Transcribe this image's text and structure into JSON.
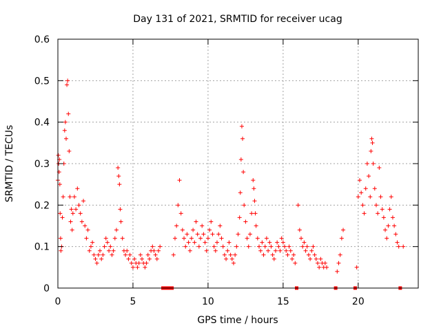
{
  "chart_data": {
    "type": "scatter",
    "title": "Day 131 of 2021, SRMTID for receiver ucag",
    "xlabel": "GPS time / hours",
    "ylabel": "SRMTID / TECUs",
    "xlim": [
      0,
      24
    ],
    "ylim": [
      0,
      0.6
    ],
    "x_ticks": [
      0,
      5,
      10,
      15,
      20
    ],
    "x_tick_labels": [
      "0",
      "5",
      "10",
      "15",
      "20"
    ],
    "y_ticks": [
      0,
      0.1,
      0.2,
      0.3,
      0.4,
      0.5,
      0.6
    ],
    "y_tick_labels": [
      "0",
      "0.1",
      "0.2",
      "0.3",
      "0.4",
      "0.5",
      "0.6"
    ],
    "grid": true,
    "marker": "plus",
    "marker_color": "#ff0000",
    "series": [
      {
        "name": "SRMTID",
        "x": [
          0.0,
          0.03,
          0.05,
          0.08,
          0.1,
          0.13,
          0.15,
          0.18,
          0.2,
          0.25,
          0.3,
          0.35,
          0.4,
          0.45,
          0.5,
          0.55,
          0.6,
          0.65,
          0.7,
          0.75,
          0.8,
          0.85,
          0.9,
          0.95,
          1.0,
          1.1,
          1.2,
          1.3,
          1.4,
          1.5,
          1.6,
          1.7,
          1.8,
          1.9,
          2.0,
          2.1,
          2.2,
          2.3,
          2.4,
          2.5,
          2.6,
          2.7,
          2.8,
          2.9,
          3.0,
          3.1,
          3.2,
          3.3,
          3.4,
          3.5,
          3.6,
          3.7,
          3.8,
          3.9,
          4.0,
          4.05,
          4.1,
          4.15,
          4.2,
          4.3,
          4.4,
          4.5,
          4.6,
          4.7,
          4.8,
          4.9,
          5.0,
          5.1,
          5.2,
          5.3,
          5.4,
          5.5,
          5.6,
          5.7,
          5.8,
          5.9,
          6.0,
          6.1,
          6.2,
          6.3,
          6.4,
          6.5,
          6.6,
          6.7,
          6.8,
          7.0,
          7.2,
          7.4,
          7.6,
          7.7,
          7.8,
          7.9,
          8.0,
          8.1,
          8.2,
          8.3,
          8.4,
          8.5,
          8.6,
          8.7,
          8.8,
          8.9,
          9.0,
          9.1,
          9.2,
          9.3,
          9.4,
          9.5,
          9.6,
          9.7,
          9.8,
          9.9,
          10.0,
          10.1,
          10.2,
          10.3,
          10.4,
          10.5,
          10.6,
          10.7,
          10.8,
          10.9,
          11.0,
          11.1,
          11.2,
          11.3,
          11.4,
          11.5,
          11.6,
          11.7,
          11.8,
          11.9,
          12.0,
          12.1,
          12.15,
          12.2,
          12.25,
          12.3,
          12.35,
          12.4,
          12.5,
          12.6,
          12.7,
          12.8,
          12.9,
          13.0,
          13.05,
          13.1,
          13.15,
          13.2,
          13.3,
          13.4,
          13.5,
          13.6,
          13.7,
          13.8,
          13.9,
          14.0,
          14.1,
          14.2,
          14.3,
          14.4,
          14.5,
          14.6,
          14.7,
          14.8,
          14.9,
          15.0,
          15.1,
          15.2,
          15.3,
          15.4,
          15.5,
          15.6,
          15.7,
          15.8,
          15.9,
          16.0,
          16.1,
          16.2,
          16.3,
          16.4,
          16.5,
          16.6,
          16.7,
          16.8,
          16.9,
          17.0,
          17.1,
          17.2,
          17.3,
          17.4,
          17.5,
          17.6,
          17.7,
          17.8,
          17.9,
          18.5,
          18.6,
          18.7,
          18.8,
          18.9,
          19.0,
          19.8,
          19.9,
          20.0,
          20.1,
          20.2,
          20.3,
          20.4,
          20.5,
          20.6,
          20.7,
          20.8,
          20.85,
          20.9,
          20.95,
          21.0,
          21.1,
          21.2,
          21.3,
          21.4,
          21.5,
          21.6,
          21.7,
          21.8,
          21.9,
          22.0,
          22.1,
          22.2,
          22.3,
          22.4,
          22.5,
          22.6,
          22.7,
          22.8,
          23.0
        ],
        "y": [
          0.26,
          0.32,
          0.3,
          0.28,
          0.31,
          0.25,
          0.18,
          0.12,
          0.09,
          0.1,
          0.17,
          0.22,
          0.3,
          0.38,
          0.4,
          0.36,
          0.49,
          0.5,
          0.42,
          0.33,
          0.22,
          0.16,
          0.19,
          0.14,
          0.18,
          0.22,
          0.19,
          0.24,
          0.2,
          0.18,
          0.16,
          0.21,
          0.15,
          0.12,
          0.14,
          0.09,
          0.1,
          0.11,
          0.08,
          0.07,
          0.06,
          0.08,
          0.09,
          0.07,
          0.08,
          0.1,
          0.12,
          0.11,
          0.09,
          0.1,
          0.08,
          0.09,
          0.12,
          0.14,
          0.29,
          0.27,
          0.25,
          0.19,
          0.16,
          0.12,
          0.09,
          0.08,
          0.09,
          0.07,
          0.08,
          0.06,
          0.05,
          0.07,
          0.06,
          0.05,
          0.06,
          0.08,
          0.07,
          0.06,
          0.05,
          0.06,
          0.08,
          0.07,
          0.09,
          0.1,
          0.09,
          0.08,
          0.07,
          0.09,
          0.1,
          0.0,
          0.0,
          0.0,
          0.0,
          0.08,
          0.12,
          0.15,
          0.2,
          0.26,
          0.18,
          0.14,
          0.12,
          0.1,
          0.13,
          0.11,
          0.09,
          0.12,
          0.14,
          0.11,
          0.16,
          0.13,
          0.1,
          0.12,
          0.15,
          0.13,
          0.11,
          0.09,
          0.12,
          0.14,
          0.16,
          0.13,
          0.1,
          0.09,
          0.11,
          0.13,
          0.15,
          0.12,
          0.1,
          0.08,
          0.07,
          0.09,
          0.11,
          0.08,
          0.07,
          0.06,
          0.08,
          0.1,
          0.13,
          0.17,
          0.23,
          0.31,
          0.39,
          0.36,
          0.28,
          0.2,
          0.16,
          0.12,
          0.1,
          0.13,
          0.18,
          0.26,
          0.24,
          0.21,
          0.18,
          0.15,
          0.12,
          0.1,
          0.09,
          0.11,
          0.08,
          0.1,
          0.12,
          0.09,
          0.11,
          0.1,
          0.08,
          0.07,
          0.09,
          0.11,
          0.1,
          0.09,
          0.12,
          0.11,
          0.1,
          0.09,
          0.08,
          0.1,
          0.09,
          0.07,
          0.08,
          0.06,
          0.0,
          0.2,
          0.14,
          0.12,
          0.1,
          0.11,
          0.09,
          0.1,
          0.08,
          0.07,
          0.09,
          0.1,
          0.08,
          0.07,
          0.06,
          0.05,
          0.07,
          0.06,
          0.05,
          0.06,
          0.05,
          0.0,
          0.04,
          0.06,
          0.08,
          0.12,
          0.14,
          0.0,
          0.05,
          0.22,
          0.26,
          0.23,
          0.2,
          0.18,
          0.24,
          0.3,
          0.27,
          0.22,
          0.33,
          0.36,
          0.35,
          0.3,
          0.24,
          0.2,
          0.18,
          0.29,
          0.22,
          0.19,
          0.17,
          0.14,
          0.12,
          0.15,
          0.19,
          0.22,
          0.17,
          0.15,
          0.13,
          0.11,
          0.1,
          0.0,
          0.1
        ]
      }
    ]
  }
}
